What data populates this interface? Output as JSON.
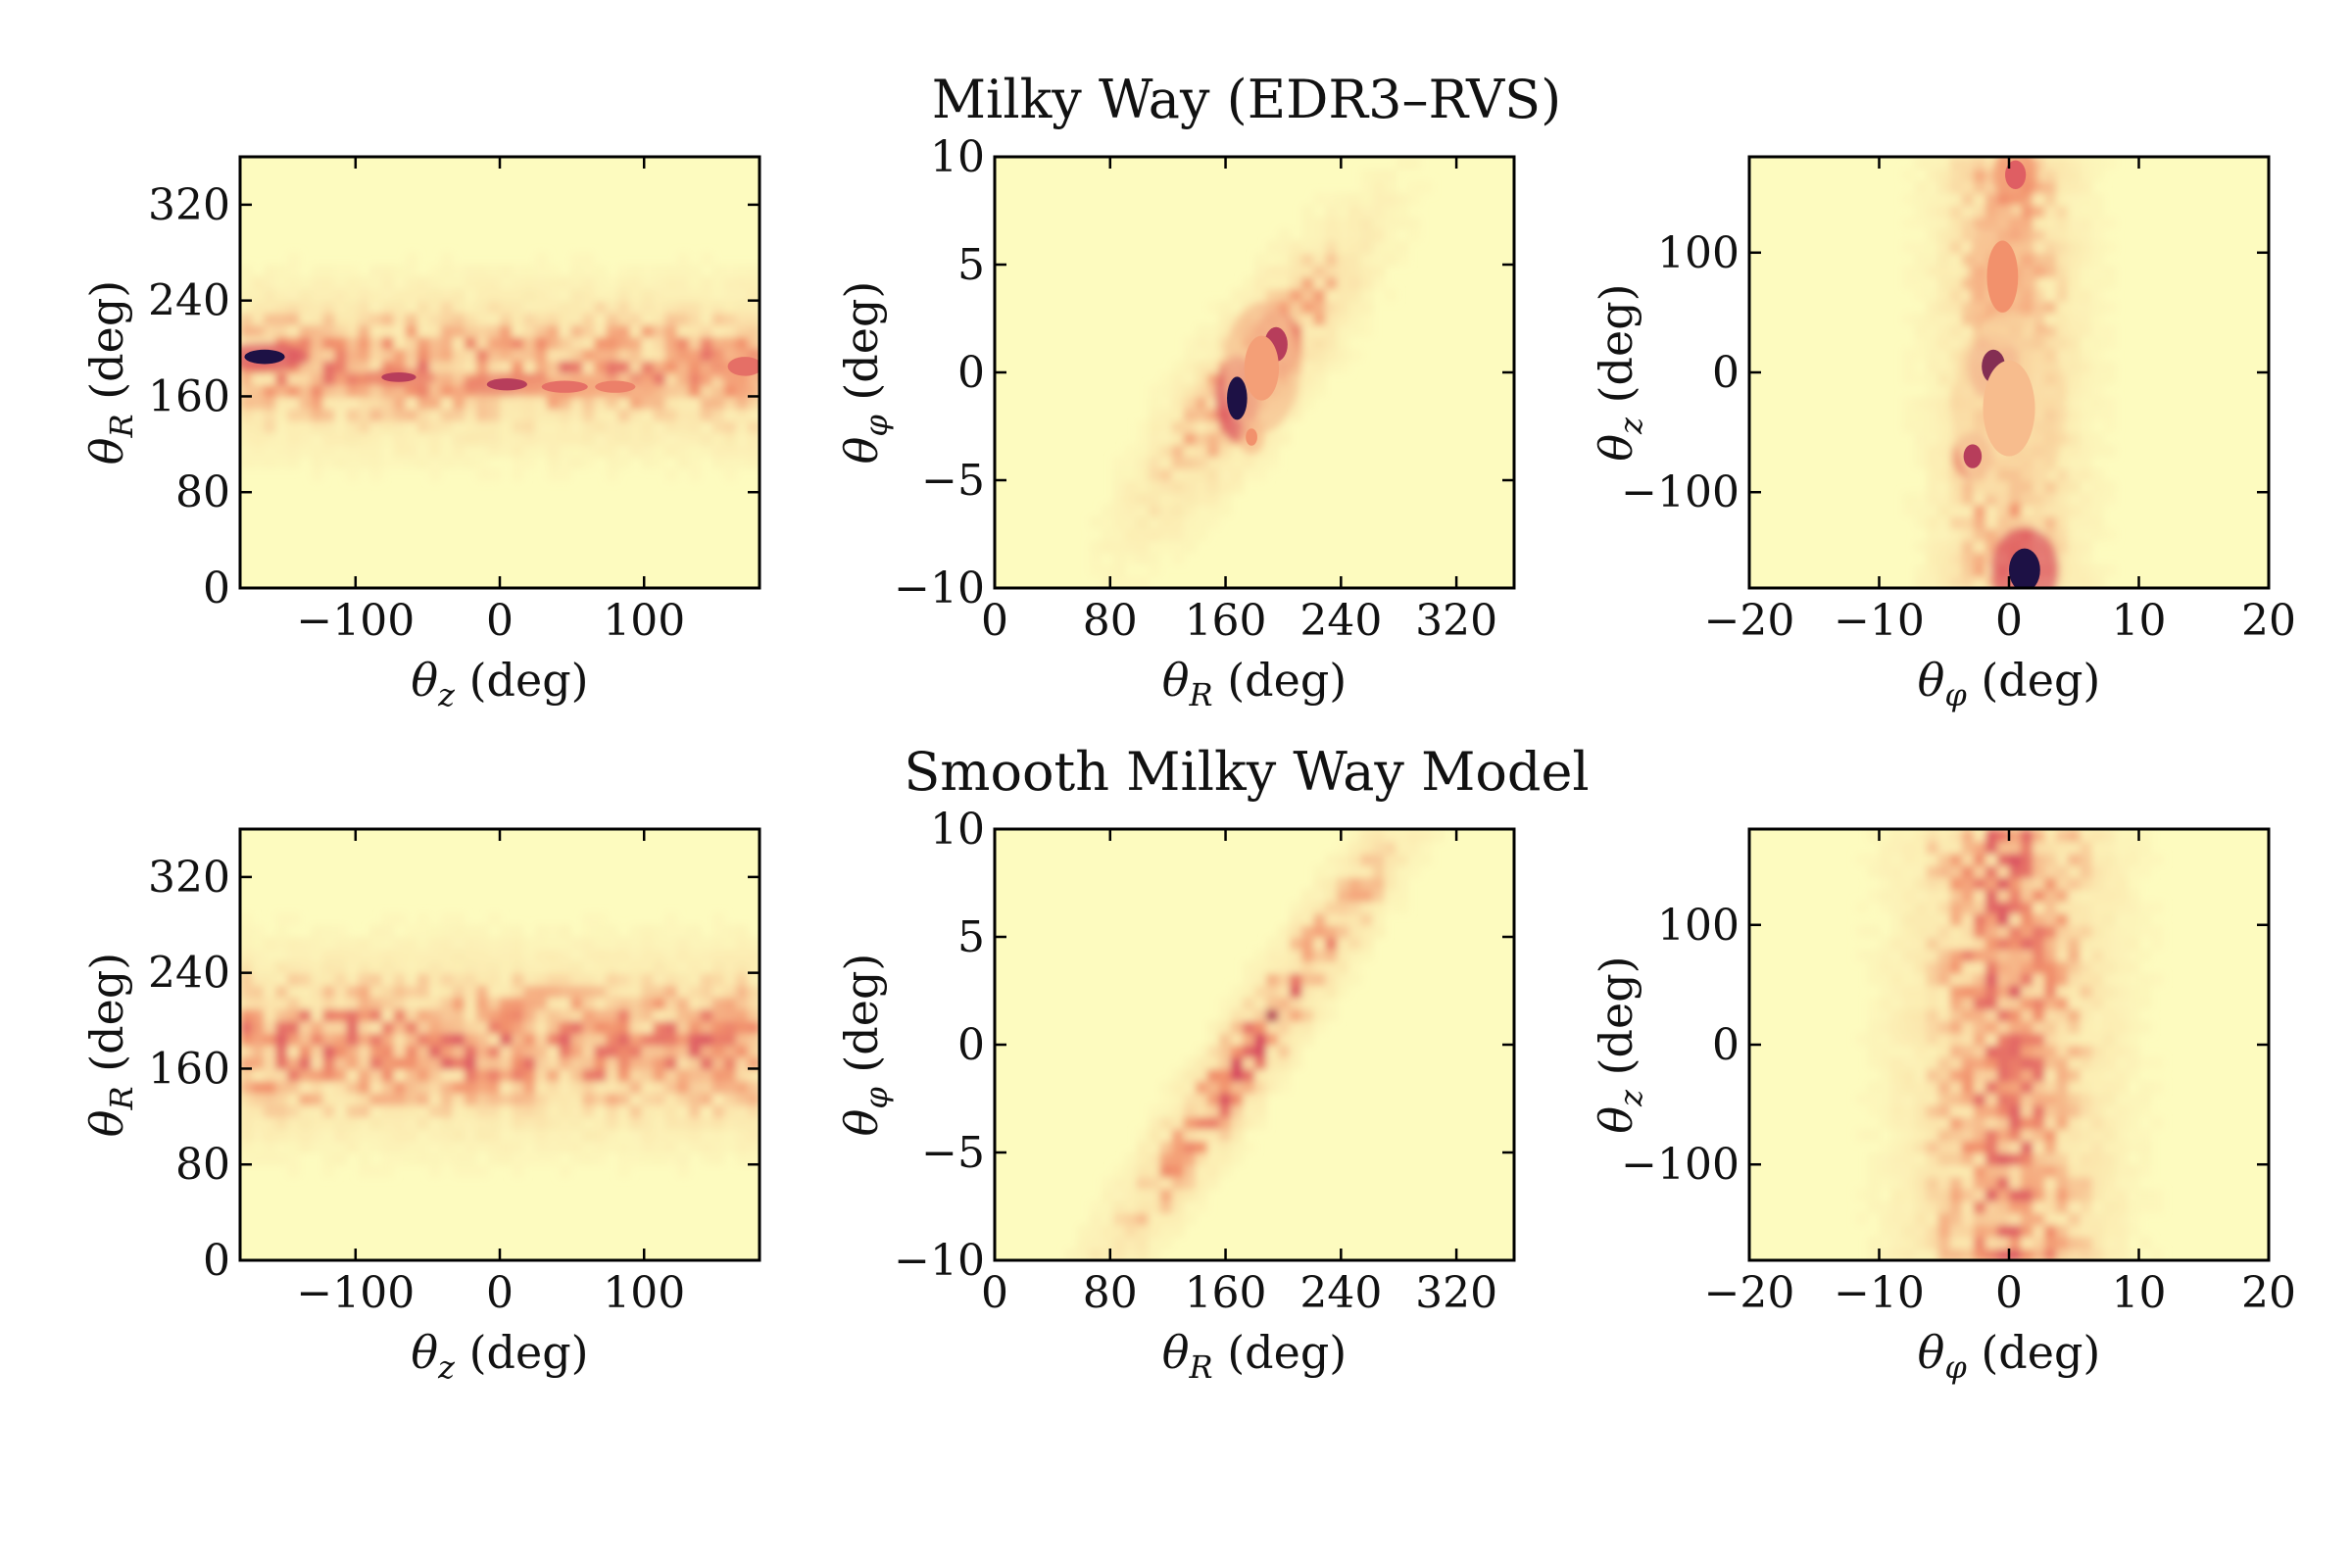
{
  "colors": {
    "background": "#fdfbbf",
    "low": "#fbe6ad",
    "mid": "#f2916c",
    "high": "#d6465f",
    "peak": "#1d1145"
  },
  "row_titles": [
    "Milky Way (EDR3–RVS)",
    "Smooth Milky Way Model"
  ],
  "chart_data": [
    {
      "type": "heatmap",
      "row": 0,
      "col": 0,
      "title": "Milky Way (EDR3–RVS)",
      "xlabel": "θz (deg)",
      "ylabel": "θR (deg)",
      "xlim": [
        -180,
        180
      ],
      "ylim": [
        0,
        360
      ],
      "xticks": [
        -100,
        0,
        100
      ],
      "xtick_labels": [
        "−100",
        "0",
        "100"
      ],
      "yticks": [
        0,
        80,
        160,
        240,
        320
      ],
      "ytick_labels": [
        "0",
        "80",
        "160",
        "240",
        "320"
      ],
      "density": {
        "shape": "band",
        "center": 185,
        "sigma": 42,
        "amplitude": 0.5,
        "seed": 11
      },
      "hotspots": [
        {
          "x": -163,
          "y": 193,
          "rx": 14,
          "ry": 6,
          "level": 1.0
        },
        {
          "x": -70,
          "y": 176,
          "rx": 12,
          "ry": 4,
          "level": 0.85
        },
        {
          "x": 5,
          "y": 170,
          "rx": 14,
          "ry": 5,
          "level": 0.85
        },
        {
          "x": 45,
          "y": 168,
          "rx": 16,
          "ry": 5,
          "level": 0.7
        },
        {
          "x": 80,
          "y": 168,
          "rx": 14,
          "ry": 5,
          "level": 0.65
        },
        {
          "x": 170,
          "y": 185,
          "rx": 12,
          "ry": 8,
          "level": 0.7
        }
      ]
    },
    {
      "type": "heatmap",
      "row": 0,
      "col": 1,
      "xlabel": "θR (deg)",
      "ylabel": "θφ (deg)",
      "xlim": [
        0,
        360
      ],
      "ylim": [
        -10,
        10
      ],
      "xticks": [
        0,
        80,
        160,
        240,
        320
      ],
      "xtick_labels": [
        "0",
        "80",
        "160",
        "240",
        "320"
      ],
      "yticks": [
        -10,
        -5,
        0,
        5,
        10
      ],
      "ytick_labels": [
        "−10",
        "−5",
        "0",
        "5",
        "10"
      ],
      "density": {
        "shape": "diagonal",
        "x0": 180,
        "y0": 0,
        "slope": 0.075,
        "along": 55,
        "across": 2.4,
        "amplitude": 0.55,
        "seed": 23
      },
      "hotspots": [
        {
          "x": 168,
          "y": -1.2,
          "rx": 7,
          "ry": 1.0,
          "level": 1.0
        },
        {
          "x": 195,
          "y": 1.3,
          "rx": 8,
          "ry": 0.8,
          "level": 0.85
        },
        {
          "x": 178,
          "y": -3.0,
          "rx": 4,
          "ry": 0.4,
          "level": 0.6
        },
        {
          "x": 185,
          "y": 0.2,
          "rx": 12,
          "ry": 1.5,
          "level": 0.55
        }
      ]
    },
    {
      "type": "heatmap",
      "row": 0,
      "col": 2,
      "xlabel": "θφ (deg)",
      "ylabel": "θz (deg)",
      "xlim": [
        -20,
        20
      ],
      "ylim": [
        -180,
        180
      ],
      "xticks": [
        -20,
        -10,
        0,
        10,
        20
      ],
      "xtick_labels": [
        "−20",
        "−10",
        "0",
        "10",
        "20"
      ],
      "yticks": [
        -100,
        0,
        100
      ],
      "ytick_labels": [
        "−100",
        "0",
        "100"
      ],
      "density": {
        "shape": "vband",
        "center": 0,
        "sigma": 3.8,
        "amplitude": 0.45,
        "seed": 37
      },
      "hotspots": [
        {
          "x": -1.2,
          "y": 5,
          "rx": 0.9,
          "ry": 14,
          "level": 0.9
        },
        {
          "x": -2.8,
          "y": -70,
          "rx": 0.7,
          "ry": 10,
          "level": 0.85
        },
        {
          "x": 1.2,
          "y": -165,
          "rx": 1.2,
          "ry": 18,
          "level": 1.0
        },
        {
          "x": 0.5,
          "y": 165,
          "rx": 0.8,
          "ry": 12,
          "level": 0.75
        },
        {
          "x": -0.5,
          "y": 80,
          "rx": 1.2,
          "ry": 30,
          "level": 0.6
        },
        {
          "x": 0,
          "y": -30,
          "rx": 2,
          "ry": 40,
          "level": 0.45
        }
      ]
    },
    {
      "type": "heatmap",
      "row": 1,
      "col": 0,
      "title": "Smooth Milky Way Model",
      "xlabel": "θz (deg)",
      "ylabel": "θR (deg)",
      "xlim": [
        -180,
        180
      ],
      "ylim": [
        0,
        360
      ],
      "xticks": [
        -100,
        0,
        100
      ],
      "xtick_labels": [
        "−100",
        "0",
        "100"
      ],
      "yticks": [
        0,
        80,
        160,
        240,
        320
      ],
      "ytick_labels": [
        "0",
        "80",
        "160",
        "240",
        "320"
      ],
      "density": {
        "shape": "band",
        "center": 180,
        "sigma": 48,
        "amplitude": 0.55,
        "seed": 51
      },
      "hotspots": []
    },
    {
      "type": "heatmap",
      "row": 1,
      "col": 1,
      "xlabel": "θR (deg)",
      "ylabel": "θφ (deg)",
      "xlim": [
        0,
        360
      ],
      "ylim": [
        -10,
        10
      ],
      "xticks": [
        0,
        80,
        160,
        240,
        320
      ],
      "xtick_labels": [
        "0",
        "80",
        "160",
        "240",
        "320"
      ],
      "yticks": [
        -10,
        -5,
        0,
        5,
        10
      ],
      "ytick_labels": [
        "−10",
        "−5",
        "0",
        "5",
        "10"
      ],
      "density": {
        "shape": "diagonal",
        "x0": 180,
        "y0": 0,
        "slope": 0.095,
        "along": 80,
        "across": 1.9,
        "amplitude": 0.6,
        "seed": 67
      },
      "hotspots": []
    },
    {
      "type": "heatmap",
      "row": 1,
      "col": 2,
      "xlabel": "θφ (deg)",
      "ylabel": "θz (deg)",
      "xlim": [
        -20,
        20
      ],
      "ylim": [
        -180,
        180
      ],
      "xticks": [
        -20,
        -10,
        0,
        10,
        20
      ],
      "xtick_labels": [
        "−20",
        "−10",
        "0",
        "10",
        "20"
      ],
      "yticks": [
        -100,
        0,
        100
      ],
      "ytick_labels": [
        "−100",
        "0",
        "100"
      ],
      "density": {
        "shape": "vband",
        "center": 0,
        "sigma": 5.2,
        "amplitude": 0.55,
        "seed": 83
      },
      "hotspots": []
    }
  ]
}
